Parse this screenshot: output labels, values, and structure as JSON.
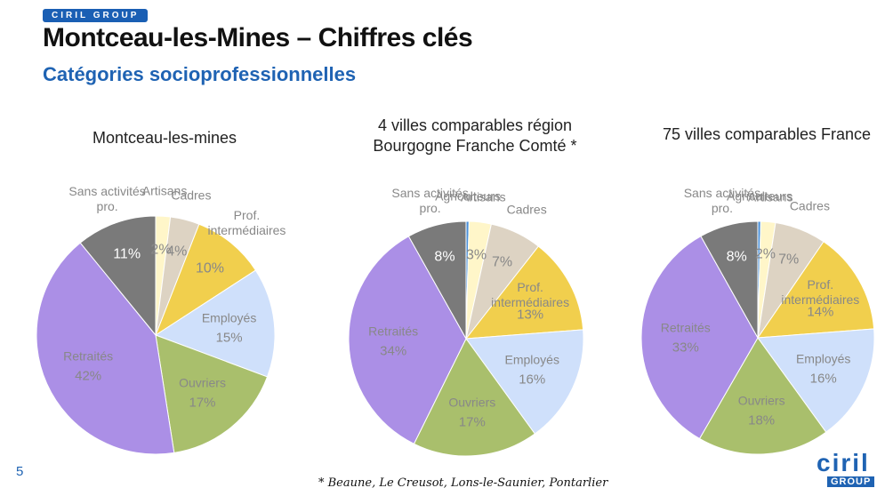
{
  "header": {
    "badge": "CIRIL GROUP",
    "title": "Montceau-les-Mines – Chiffres clés",
    "subtitle": "Catégories socioprofessionnelles"
  },
  "chart_data": [
    {
      "type": "pie",
      "title": "Montceau-les-mines",
      "categories": [
        "Artisans",
        "Cadres",
        "Prof. intermédiaires",
        "Employés",
        "Ouvriers",
        "Retraités",
        "Sans activités pro."
      ],
      "values": [
        2,
        4,
        10,
        15,
        17,
        42,
        11
      ],
      "value_labels": [
        "2%",
        "4%",
        "10%",
        "15%",
        "17%",
        "42%",
        "11%"
      ],
      "colors": [
        "#fff6c9",
        "#ddd3c3",
        "#f1cf4d",
        "#cfe0fb",
        "#a9bf6c",
        "#ab8fe6",
        "#7a7a7a"
      ]
    },
    {
      "type": "pie",
      "title": "4 villes comparables région Bourgogne Franche Comté *",
      "categories": [
        "Agriculteurs",
        "Artisans",
        "Cadres",
        "Prof. intermédiaires",
        "Employés",
        "Ouvriers",
        "Retraités",
        "Sans activités pro."
      ],
      "values": [
        0.4,
        3,
        7,
        13,
        16,
        17,
        34,
        8
      ],
      "value_labels": [
        null,
        "3%",
        "7%",
        "13%",
        "16%",
        "17%",
        "34%",
        "8%"
      ],
      "colors": [
        "#4a90d9",
        "#fff6c9",
        "#ddd3c3",
        "#f1cf4d",
        "#cfe0fb",
        "#a9bf6c",
        "#ab8fe6",
        "#7a7a7a"
      ]
    },
    {
      "type": "pie",
      "title": "75 villes comparables France",
      "categories": [
        "Agriculteurs",
        "Artisans",
        "Cadres",
        "Prof. intermédiaires",
        "Employés",
        "Ouvriers",
        "Retraités",
        "Sans activités pro."
      ],
      "values": [
        0.4,
        2,
        7,
        14,
        16,
        18,
        33,
        8
      ],
      "value_labels": [
        null,
        "2%",
        "7%",
        "14%",
        "16%",
        "18%",
        "33%",
        "8%"
      ],
      "colors": [
        "#4a90d9",
        "#fff6c9",
        "#ddd3c3",
        "#f1cf4d",
        "#cfe0fb",
        "#a9bf6c",
        "#ab8fe6",
        "#7a7a7a"
      ]
    }
  ],
  "footer": {
    "page": "5",
    "note": "* Beaune, Le Creusot, Lons-le-Saunier, Pontarlier",
    "logo": "ciril",
    "logo_sub": "GROUP"
  }
}
